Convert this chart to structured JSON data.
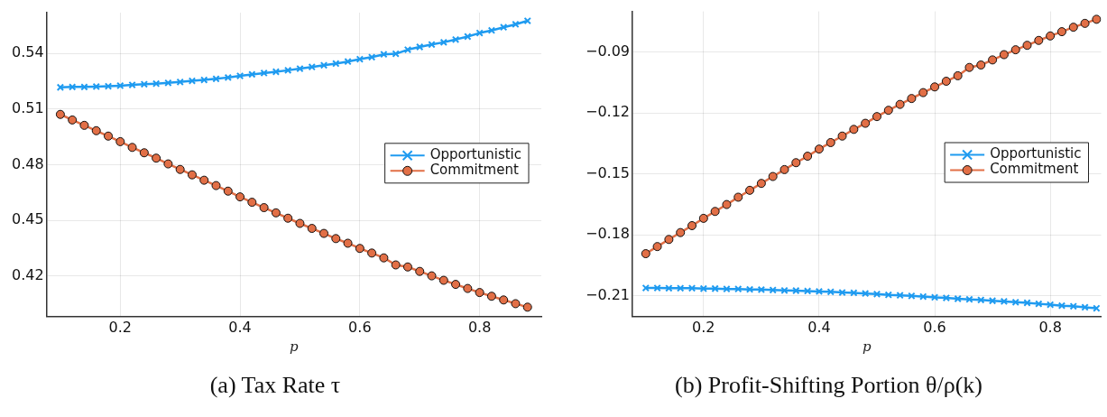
{
  "chart_data": [
    {
      "type": "line",
      "title": "(a) Tax Rate τ",
      "xlabel": "p",
      "x": [
        0.1,
        0.12,
        0.14,
        0.16,
        0.18,
        0.2,
        0.22,
        0.24,
        0.26,
        0.28,
        0.3,
        0.32,
        0.34,
        0.36,
        0.38,
        0.4,
        0.42,
        0.44,
        0.46,
        0.48,
        0.5,
        0.52,
        0.54,
        0.56,
        0.58,
        0.6,
        0.62,
        0.64,
        0.66,
        0.68,
        0.7,
        0.72,
        0.74,
        0.76,
        0.78,
        0.8,
        0.82,
        0.84,
        0.86,
        0.88
      ],
      "series": [
        {
          "name": "Opportunistic",
          "color": "#1f9bf0",
          "marker": "cross",
          "values": [
            0.5217,
            0.5219,
            0.5219,
            0.5221,
            0.5223,
            0.5226,
            0.523,
            0.5234,
            0.5237,
            0.5241,
            0.5246,
            0.5252,
            0.5257,
            0.5263,
            0.527,
            0.5279,
            0.5287,
            0.5294,
            0.5301,
            0.5309,
            0.5318,
            0.5327,
            0.5336,
            0.5345,
            0.5356,
            0.5369,
            0.538,
            0.5395,
            0.5398,
            0.542,
            0.5435,
            0.5448,
            0.546,
            0.5475,
            0.5491,
            0.551,
            0.5524,
            0.5541,
            0.5557,
            0.5576
          ]
        },
        {
          "name": "Commitment",
          "color": "#e26f46",
          "marker": "circle",
          "values": [
            0.5071,
            0.5041,
            0.5012,
            0.4983,
            0.4954,
            0.4924,
            0.4893,
            0.4864,
            0.4835,
            0.4804,
            0.4774,
            0.4745,
            0.4716,
            0.4687,
            0.4657,
            0.4626,
            0.4597,
            0.4568,
            0.454,
            0.4511,
            0.4483,
            0.4456,
            0.4429,
            0.4401,
            0.4376,
            0.4348,
            0.4323,
            0.4297,
            0.4259,
            0.4248,
            0.4224,
            0.42,
            0.4176,
            0.4154,
            0.4132,
            0.411,
            0.409,
            0.407,
            0.405,
            0.4031
          ]
        }
      ],
      "xlim": [
        0.077,
        0.903
      ],
      "ylim": [
        0.398,
        0.562
      ],
      "xticks": [
        0.2,
        0.4,
        0.6,
        0.8
      ],
      "yticks": [
        0.42,
        0.45,
        0.48,
        0.51,
        0.54
      ],
      "grid": true,
      "legend": "right",
      "line_style": "solid"
    },
    {
      "type": "line",
      "title": "(b) Profit-Shifting Portion θ/ρ(k)",
      "xlabel": "p",
      "x": [
        0.1,
        0.12,
        0.14,
        0.16,
        0.18,
        0.2,
        0.22,
        0.24,
        0.26,
        0.28,
        0.3,
        0.32,
        0.34,
        0.36,
        0.38,
        0.4,
        0.42,
        0.44,
        0.46,
        0.48,
        0.5,
        0.52,
        0.54,
        0.56,
        0.58,
        0.6,
        0.62,
        0.64,
        0.66,
        0.68,
        0.7,
        0.72,
        0.74,
        0.76,
        0.78,
        0.8,
        0.82,
        0.84,
        0.86,
        0.88
      ],
      "series": [
        {
          "name": "Opportunistic",
          "color": "#1f9bf0",
          "marker": "cross",
          "values": [
            -0.2061,
            -0.2061,
            -0.2062,
            -0.2062,
            -0.2062,
            -0.2064,
            -0.2064,
            -0.2066,
            -0.2066,
            -0.2068,
            -0.2069,
            -0.2071,
            -0.2073,
            -0.2074,
            -0.2076,
            -0.2078,
            -0.208,
            -0.2083,
            -0.2085,
            -0.2088,
            -0.2091,
            -0.2095,
            -0.2097,
            -0.21,
            -0.2103,
            -0.2107,
            -0.211,
            -0.2114,
            -0.2117,
            -0.212,
            -0.2124,
            -0.2127,
            -0.2131,
            -0.2134,
            -0.2139,
            -0.2143,
            -0.2148,
            -0.2151,
            -0.2156,
            -0.2161
          ]
        },
        {
          "name": "Commitment",
          "color": "#e26f46",
          "marker": "circle",
          "values": [
            -0.1892,
            -0.1857,
            -0.1822,
            -0.1788,
            -0.1754,
            -0.1718,
            -0.1684,
            -0.165,
            -0.1614,
            -0.158,
            -0.1546,
            -0.1512,
            -0.1478,
            -0.1444,
            -0.1412,
            -0.1377,
            -0.1345,
            -0.1313,
            -0.128,
            -0.125,
            -0.1217,
            -0.1186,
            -0.1157,
            -0.1128,
            -0.1099,
            -0.1071,
            -0.1043,
            -0.1016,
            -0.0975,
            -0.0963,
            -0.0938,
            -0.0912,
            -0.0888,
            -0.0866,
            -0.0842,
            -0.082,
            -0.0799,
            -0.0777,
            -0.0758,
            -0.0738
          ]
        }
      ],
      "xlim": [
        0.077,
        0.888
      ],
      "ylim": [
        -0.2202,
        -0.0699
      ],
      "xticks": [
        0.2,
        0.4,
        0.6,
        0.8
      ],
      "yticks": [
        -0.21,
        -0.18,
        -0.15,
        -0.12,
        -0.09
      ],
      "grid": true,
      "legend": "right",
      "line_style": "solid"
    }
  ]
}
